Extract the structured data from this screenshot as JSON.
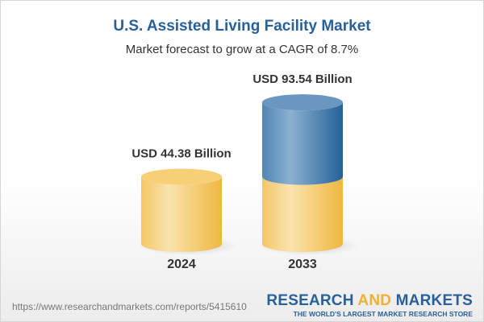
{
  "chart_data": {
    "type": "bar",
    "title": "U.S. Assisted Living Facility Market",
    "subtitle": "Market forecast to grow at a CAGR of 8.7%",
    "categories": [
      "2024",
      "2033"
    ],
    "values": [
      44.38,
      93.54
    ],
    "data_labels": [
      "USD 44.38 Billion",
      "USD 93.54 Billion"
    ],
    "unit": "USD Billion",
    "style": "3d-cylinder",
    "colors": {
      "base": "#f2c45a",
      "growth": "#3f78a8",
      "title": "#2a6099"
    }
  },
  "footer": {
    "url": "https://www.researchandmarkets.com/reports/5415610",
    "logo_text": "RESEARCH AND MARKETS",
    "logo_tagline": "THE WORLD'S LARGEST MARKET RESEARCH STORE"
  }
}
